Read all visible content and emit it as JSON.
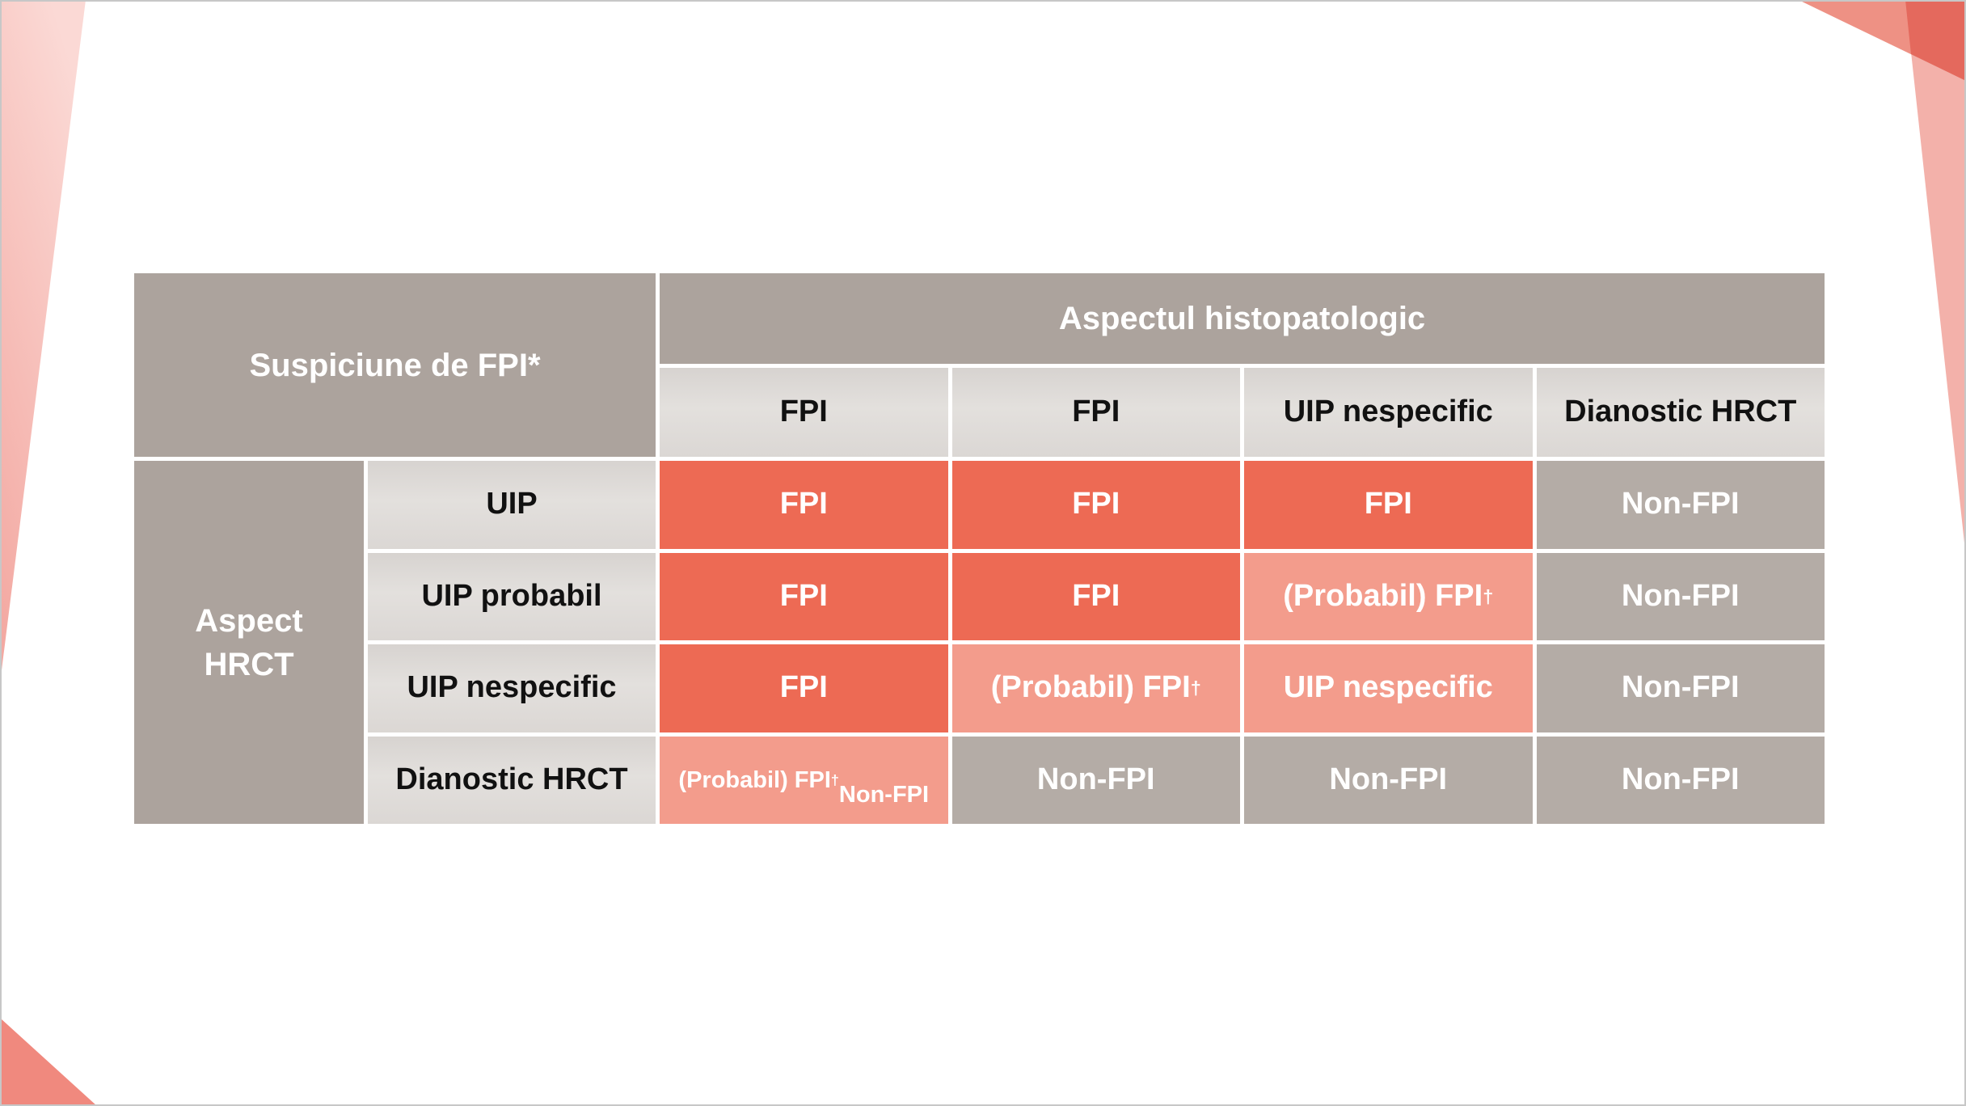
{
  "page": {
    "background": "#FFFFFF",
    "frame_color": "#C7C7C7"
  },
  "colors": {
    "header_bg": "#ACA39D",
    "subheader_bg": "#DCD8D5",
    "fpi_bg": "#ED6A54",
    "probable_bg": "#F39C8C",
    "non_fpi_bg": "#B4ACA6",
    "grid_line": "#FFFFFF",
    "header_text": "#FFFFFF",
    "subheader_text": "#111111"
  },
  "decorations": {
    "top_left_ribbon": {
      "color_top": "#FBD9D5",
      "color_bottom": "#F3A9A2"
    },
    "top_right_band": {
      "color": "#F3B1AA"
    },
    "top_right_triangle": {
      "color": "#EE9184"
    },
    "top_right_overlap": {
      "color": "#E4695D"
    },
    "bottom_left_triangle": {
      "color": "#F0897E"
    }
  },
  "table": {
    "corner_header": "Suspiciune de FPI*",
    "column_group_header": "Aspectul histopatologic",
    "column_headers": [
      "FPI",
      "FPI",
      "UIP nespecific",
      "Dianostic HRCT"
    ],
    "row_group_header": "Aspect\nHRCT",
    "rows": [
      {
        "label": "UIP",
        "cells": [
          {
            "text": "FPI",
            "type": "fpi"
          },
          {
            "text": "FPI",
            "type": "fpi"
          },
          {
            "text": "FPI",
            "type": "fpi"
          },
          {
            "text": "Non-FPI",
            "type": "non-fpi"
          }
        ]
      },
      {
        "label": "UIP probabil",
        "cells": [
          {
            "text": "FPI",
            "type": "fpi"
          },
          {
            "text": "FPI",
            "type": "fpi"
          },
          {
            "text": "(Probabil) FPI†",
            "type": "probable-fpi"
          },
          {
            "text": "Non-FPI",
            "type": "non-fpi"
          }
        ]
      },
      {
        "label": "UIP nespecific",
        "cells": [
          {
            "text": "FPI",
            "type": "fpi"
          },
          {
            "text": "(Probabil) FPI†",
            "type": "probable-fpi"
          },
          {
            "text": "UIP nespecific",
            "type": "probable-fpi"
          },
          {
            "text": "Non-FPI",
            "type": "non-fpi"
          }
        ]
      },
      {
        "label": "Dianostic HRCT",
        "cells": [
          {
            "text": "(Probabil) FPI†\nNon-FPI",
            "type": "probable-fpi"
          },
          {
            "text": "Non-FPI",
            "type": "non-fpi"
          },
          {
            "text": "Non-FPI",
            "type": "non-fpi"
          },
          {
            "text": "Non-FPI",
            "type": "non-fpi"
          }
        ]
      }
    ]
  }
}
